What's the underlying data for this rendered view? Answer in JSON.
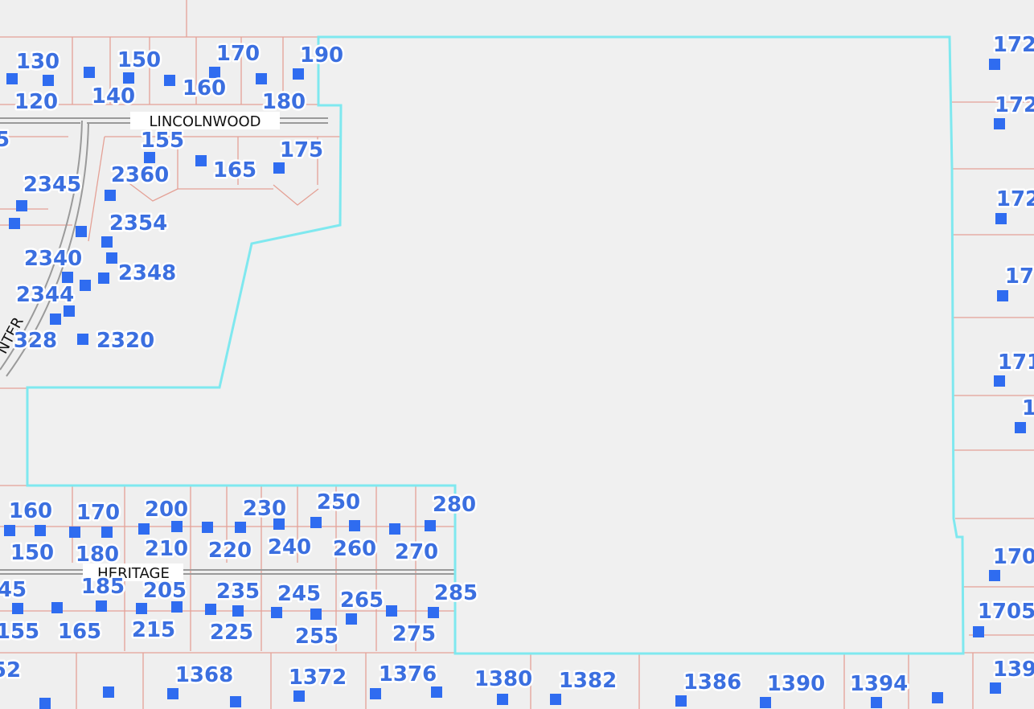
{
  "streets": [
    "LINCOLNWOOD",
    "HERITAGE",
    "NTER"
  ],
  "addresses": [
    "130",
    "150",
    "170",
    "190",
    "120",
    "140",
    "160",
    "180",
    "155",
    "175",
    "2360",
    "165",
    "2345",
    "2354",
    "2340",
    "2348",
    "2344",
    "328",
    "2320",
    "5",
    "160",
    "170",
    "200",
    "230",
    "250",
    "280",
    "150",
    "180",
    "210",
    "220",
    "240",
    "260",
    "270",
    "45",
    "185",
    "205",
    "235",
    "245",
    "265",
    "285",
    "155",
    "165",
    "215",
    "225",
    "255",
    "275",
    "52",
    "1368",
    "1372",
    "1376",
    "1380",
    "1382",
    "1386",
    "1390",
    "1394",
    "172",
    "172",
    "172",
    "17",
    "171",
    "1",
    "170",
    "1705",
    "139"
  ]
}
